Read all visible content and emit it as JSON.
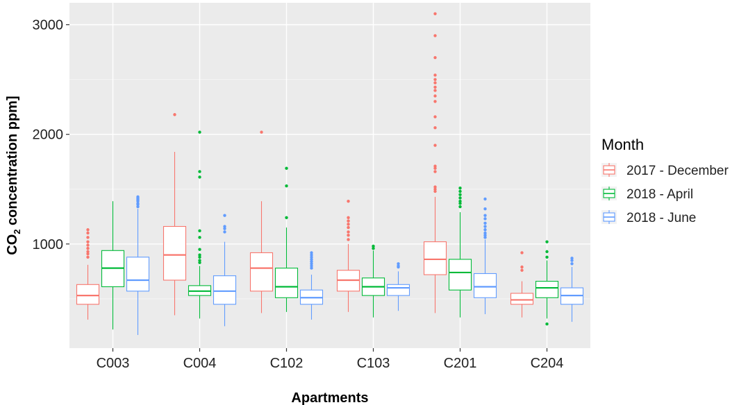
{
  "chart_data": {
    "type": "box",
    "xlabel": "Apartments",
    "ylabel_main": "CO",
    "ylabel_sub": "2",
    "ylabel_rest": " concentration ppm]",
    "ylim": [
      50,
      3200
    ],
    "yticks": [
      1000,
      2000,
      3000
    ],
    "y_minor_gridlines": [
      500,
      1500,
      2500
    ],
    "grid": true,
    "panel_background": "#ebebeb",
    "categories": [
      "C003",
      "C004",
      "C102",
      "C103",
      "C201",
      "C204"
    ],
    "legend": {
      "title": "Month",
      "position": "right",
      "entries": [
        "2017 - December",
        "2018 - April",
        "2018 - June"
      ]
    },
    "series": [
      {
        "name": "2017 - December",
        "color": "#f8766d",
        "boxes": [
          {
            "whisker_low": 310,
            "q1": 450,
            "median": 530,
            "q3": 630,
            "whisker_high": 810,
            "outliers": [
              880,
              910,
              930,
              960,
              990,
              1020,
              1060,
              1100,
              1130
            ]
          },
          {
            "whisker_low": 350,
            "q1": 670,
            "median": 900,
            "q3": 1160,
            "whisker_high": 1840,
            "outliers": [
              2180
            ]
          },
          {
            "whisker_low": 370,
            "q1": 570,
            "median": 780,
            "q3": 920,
            "whisker_high": 1390,
            "outliers": [
              2020
            ]
          },
          {
            "whisker_low": 380,
            "q1": 570,
            "median": 670,
            "q3": 760,
            "whisker_high": 1000,
            "outliers": [
              1040,
              1080,
              1110,
              1150,
              1180,
              1210,
              1240,
              1390
            ]
          },
          {
            "whisker_low": 370,
            "q1": 720,
            "median": 860,
            "q3": 1020,
            "whisker_high": 1430,
            "outliers": [
              1480,
              1500,
              1520,
              1660,
              1690,
              1710,
              1900,
              2060,
              2160,
              2300,
              2350,
              2400,
              2430,
              2470,
              2500,
              2540,
              2700,
              2900,
              3100
            ]
          },
          {
            "whisker_low": 330,
            "q1": 450,
            "median": 490,
            "q3": 550,
            "whisker_high": 660,
            "outliers": [
              760,
              790,
              920
            ]
          }
        ]
      },
      {
        "name": "2018 - April",
        "color": "#00ba38",
        "boxes": [
          {
            "whisker_low": 220,
            "q1": 610,
            "median": 780,
            "q3": 940,
            "whisker_high": 1390,
            "outliers": []
          },
          {
            "whisker_low": 320,
            "q1": 530,
            "median": 570,
            "q3": 620,
            "whisker_high": 800,
            "outliers": [
              830,
              850,
              880,
              900,
              950,
              1060,
              1120,
              1610,
              1660,
              2020
            ]
          },
          {
            "whisker_low": 380,
            "q1": 510,
            "median": 610,
            "q3": 780,
            "whisker_high": 1150,
            "outliers": [
              1240,
              1530,
              1690
            ]
          },
          {
            "whisker_low": 330,
            "q1": 530,
            "median": 610,
            "q3": 690,
            "whisker_high": 940,
            "outliers": [
              960,
              980
            ]
          },
          {
            "whisker_low": 330,
            "q1": 580,
            "median": 740,
            "q3": 860,
            "whisker_high": 1290,
            "outliers": [
              1340,
              1370,
              1390,
              1420,
              1450,
              1480,
              1510
            ]
          },
          {
            "whisker_low": 320,
            "q1": 510,
            "median": 600,
            "q3": 660,
            "whisker_high": 850,
            "outliers": [
              270,
              880,
              930,
              1020
            ]
          }
        ]
      },
      {
        "name": "2018 - June",
        "color": "#619cff",
        "boxes": [
          {
            "whisker_low": 170,
            "q1": 570,
            "median": 670,
            "q3": 880,
            "whisker_high": 1320,
            "outliers": [
              1340,
              1360,
              1370,
              1390,
              1400,
              1410,
              1420,
              1430
            ]
          },
          {
            "whisker_low": 250,
            "q1": 450,
            "median": 570,
            "q3": 710,
            "whisker_high": 1020,
            "outliers": [
              1110,
              1140,
              1160,
              1260
            ]
          },
          {
            "whisker_low": 310,
            "q1": 450,
            "median": 510,
            "q3": 580,
            "whisker_high": 720,
            "outliers": [
              780,
              800,
              820,
              840,
              860,
              880,
              900,
              920
            ]
          },
          {
            "whisker_low": 390,
            "q1": 530,
            "median": 600,
            "q3": 630,
            "whisker_high": 750,
            "outliers": [
              790,
              800,
              820
            ]
          },
          {
            "whisker_low": 360,
            "q1": 510,
            "median": 610,
            "q3": 730,
            "whisker_high": 1040,
            "outliers": [
              1060,
              1080,
              1100,
              1130,
              1160,
              1190,
              1230,
              1260,
              1320,
              1410
            ]
          },
          {
            "whisker_low": 290,
            "q1": 450,
            "median": 530,
            "q3": 600,
            "whisker_high": 790,
            "outliers": [
              820,
              850,
              870
            ]
          }
        ]
      }
    ]
  }
}
